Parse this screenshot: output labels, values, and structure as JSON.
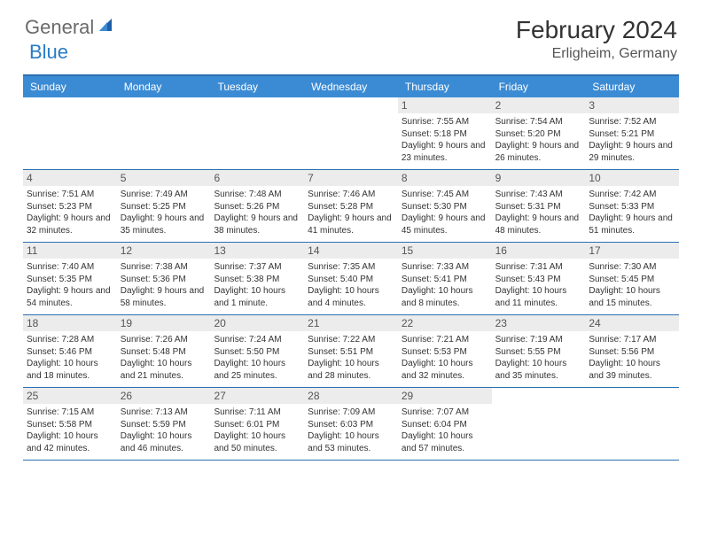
{
  "logo": {
    "general": "General",
    "blue": "Blue"
  },
  "title": "February 2024",
  "location": "Erligheim, Germany",
  "colors": {
    "header_bar": "#3b8bd4",
    "row_border": "#2a6fb0",
    "daynum_bg": "#ececec",
    "logo_gray": "#6a6a6a",
    "logo_blue": "#2a7cc4"
  },
  "days_of_week": [
    "Sunday",
    "Monday",
    "Tuesday",
    "Wednesday",
    "Thursday",
    "Friday",
    "Saturday"
  ],
  "weeks": [
    [
      {
        "n": "",
        "sr": "",
        "ss": "",
        "dl": ""
      },
      {
        "n": "",
        "sr": "",
        "ss": "",
        "dl": ""
      },
      {
        "n": "",
        "sr": "",
        "ss": "",
        "dl": ""
      },
      {
        "n": "",
        "sr": "",
        "ss": "",
        "dl": ""
      },
      {
        "n": "1",
        "sr": "Sunrise: 7:55 AM",
        "ss": "Sunset: 5:18 PM",
        "dl": "Daylight: 9 hours and 23 minutes."
      },
      {
        "n": "2",
        "sr": "Sunrise: 7:54 AM",
        "ss": "Sunset: 5:20 PM",
        "dl": "Daylight: 9 hours and 26 minutes."
      },
      {
        "n": "3",
        "sr": "Sunrise: 7:52 AM",
        "ss": "Sunset: 5:21 PM",
        "dl": "Daylight: 9 hours and 29 minutes."
      }
    ],
    [
      {
        "n": "4",
        "sr": "Sunrise: 7:51 AM",
        "ss": "Sunset: 5:23 PM",
        "dl": "Daylight: 9 hours and 32 minutes."
      },
      {
        "n": "5",
        "sr": "Sunrise: 7:49 AM",
        "ss": "Sunset: 5:25 PM",
        "dl": "Daylight: 9 hours and 35 minutes."
      },
      {
        "n": "6",
        "sr": "Sunrise: 7:48 AM",
        "ss": "Sunset: 5:26 PM",
        "dl": "Daylight: 9 hours and 38 minutes."
      },
      {
        "n": "7",
        "sr": "Sunrise: 7:46 AM",
        "ss": "Sunset: 5:28 PM",
        "dl": "Daylight: 9 hours and 41 minutes."
      },
      {
        "n": "8",
        "sr": "Sunrise: 7:45 AM",
        "ss": "Sunset: 5:30 PM",
        "dl": "Daylight: 9 hours and 45 minutes."
      },
      {
        "n": "9",
        "sr": "Sunrise: 7:43 AM",
        "ss": "Sunset: 5:31 PM",
        "dl": "Daylight: 9 hours and 48 minutes."
      },
      {
        "n": "10",
        "sr": "Sunrise: 7:42 AM",
        "ss": "Sunset: 5:33 PM",
        "dl": "Daylight: 9 hours and 51 minutes."
      }
    ],
    [
      {
        "n": "11",
        "sr": "Sunrise: 7:40 AM",
        "ss": "Sunset: 5:35 PM",
        "dl": "Daylight: 9 hours and 54 minutes."
      },
      {
        "n": "12",
        "sr": "Sunrise: 7:38 AM",
        "ss": "Sunset: 5:36 PM",
        "dl": "Daylight: 9 hours and 58 minutes."
      },
      {
        "n": "13",
        "sr": "Sunrise: 7:37 AM",
        "ss": "Sunset: 5:38 PM",
        "dl": "Daylight: 10 hours and 1 minute."
      },
      {
        "n": "14",
        "sr": "Sunrise: 7:35 AM",
        "ss": "Sunset: 5:40 PM",
        "dl": "Daylight: 10 hours and 4 minutes."
      },
      {
        "n": "15",
        "sr": "Sunrise: 7:33 AM",
        "ss": "Sunset: 5:41 PM",
        "dl": "Daylight: 10 hours and 8 minutes."
      },
      {
        "n": "16",
        "sr": "Sunrise: 7:31 AM",
        "ss": "Sunset: 5:43 PM",
        "dl": "Daylight: 10 hours and 11 minutes."
      },
      {
        "n": "17",
        "sr": "Sunrise: 7:30 AM",
        "ss": "Sunset: 5:45 PM",
        "dl": "Daylight: 10 hours and 15 minutes."
      }
    ],
    [
      {
        "n": "18",
        "sr": "Sunrise: 7:28 AM",
        "ss": "Sunset: 5:46 PM",
        "dl": "Daylight: 10 hours and 18 minutes."
      },
      {
        "n": "19",
        "sr": "Sunrise: 7:26 AM",
        "ss": "Sunset: 5:48 PM",
        "dl": "Daylight: 10 hours and 21 minutes."
      },
      {
        "n": "20",
        "sr": "Sunrise: 7:24 AM",
        "ss": "Sunset: 5:50 PM",
        "dl": "Daylight: 10 hours and 25 minutes."
      },
      {
        "n": "21",
        "sr": "Sunrise: 7:22 AM",
        "ss": "Sunset: 5:51 PM",
        "dl": "Daylight: 10 hours and 28 minutes."
      },
      {
        "n": "22",
        "sr": "Sunrise: 7:21 AM",
        "ss": "Sunset: 5:53 PM",
        "dl": "Daylight: 10 hours and 32 minutes."
      },
      {
        "n": "23",
        "sr": "Sunrise: 7:19 AM",
        "ss": "Sunset: 5:55 PM",
        "dl": "Daylight: 10 hours and 35 minutes."
      },
      {
        "n": "24",
        "sr": "Sunrise: 7:17 AM",
        "ss": "Sunset: 5:56 PM",
        "dl": "Daylight: 10 hours and 39 minutes."
      }
    ],
    [
      {
        "n": "25",
        "sr": "Sunrise: 7:15 AM",
        "ss": "Sunset: 5:58 PM",
        "dl": "Daylight: 10 hours and 42 minutes."
      },
      {
        "n": "26",
        "sr": "Sunrise: 7:13 AM",
        "ss": "Sunset: 5:59 PM",
        "dl": "Daylight: 10 hours and 46 minutes."
      },
      {
        "n": "27",
        "sr": "Sunrise: 7:11 AM",
        "ss": "Sunset: 6:01 PM",
        "dl": "Daylight: 10 hours and 50 minutes."
      },
      {
        "n": "28",
        "sr": "Sunrise: 7:09 AM",
        "ss": "Sunset: 6:03 PM",
        "dl": "Daylight: 10 hours and 53 minutes."
      },
      {
        "n": "29",
        "sr": "Sunrise: 7:07 AM",
        "ss": "Sunset: 6:04 PM",
        "dl": "Daylight: 10 hours and 57 minutes."
      },
      {
        "n": "",
        "sr": "",
        "ss": "",
        "dl": ""
      },
      {
        "n": "",
        "sr": "",
        "ss": "",
        "dl": ""
      }
    ]
  ]
}
